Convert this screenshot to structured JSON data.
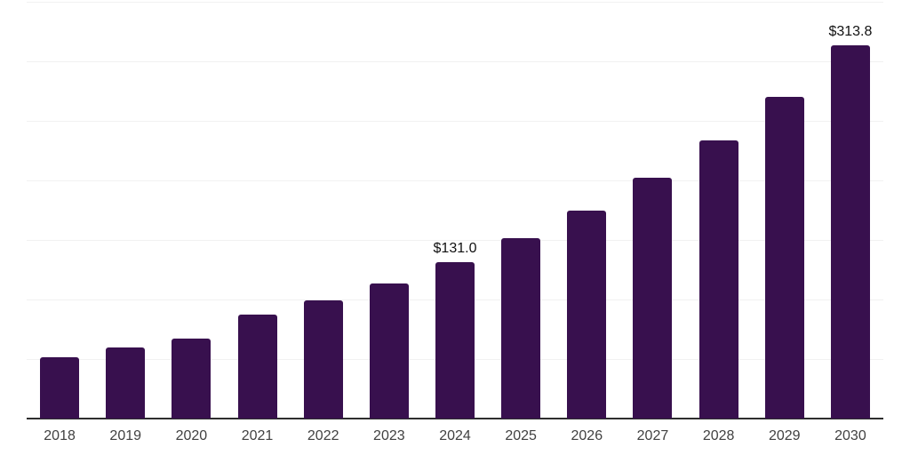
{
  "chart_data": {
    "type": "bar",
    "title": "",
    "xlabel": "",
    "ylabel": "",
    "categories": [
      "2018",
      "2019",
      "2020",
      "2021",
      "2022",
      "2023",
      "2024",
      "2025",
      "2026",
      "2027",
      "2028",
      "2029",
      "2030"
    ],
    "values": [
      51.8,
      59.4,
      67.2,
      87.6,
      99.3,
      113.6,
      131.0,
      151.3,
      174.9,
      202.2,
      233.4,
      270.3,
      313.8
    ],
    "point_labels": [
      "",
      "",
      "",
      "",
      "",
      "",
      "$131.0",
      "",
      "",
      "",
      "",
      "",
      "$313.8"
    ],
    "ylim": [
      0,
      350
    ],
    "gridline_step": 50,
    "grid": "horizontal",
    "legend": "none",
    "y_axis_tick_labels": "hidden"
  },
  "colors": {
    "bar": "#38104E",
    "gridline": "#F1F1F1",
    "axis_line": "#2E2E2E",
    "tick_label": "#414141",
    "data_label": "#111111",
    "background": "#FFFFFF"
  }
}
